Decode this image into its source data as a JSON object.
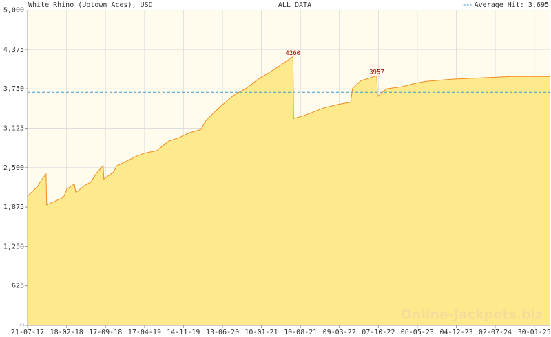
{
  "chart_data": {
    "type": "area",
    "title": "White Rhino (Uptown Aces), USD",
    "subtitle": "ALL DATA",
    "watermark": "Online-Jackpots.biz",
    "average": {
      "label": "Average Hit: 3,695",
      "value": 3695,
      "color": "#3a9ac8"
    },
    "series": [
      {
        "name": "White Rhino (Uptown Aces)",
        "color": "#f08a1e",
        "fill": "#fee98c",
        "x": [
          "21-07-17",
          "15-09-17",
          "03-10-17",
          "29-10-17",
          "02-11-17",
          "17-12-17",
          "01-02-18",
          "19-02-18",
          "01-04-18",
          "09-04-18",
          "03-06-18",
          "29-06-18",
          "29-07-18",
          "04-09-18",
          "08-09-18",
          "30-10-18",
          "18-11-18",
          "10-03-19",
          "17-04-19",
          "23-06-19",
          "25-08-19",
          "20-10-19",
          "14-12-19",
          "16-02-20",
          "16-03-20",
          "31-05-20",
          "13-08-20",
          "26-10-20",
          "22-12-20",
          "25-03-21",
          "30-06-21",
          "04-07-21",
          "09-09-21",
          "10-12-21",
          "24-02-22",
          "09-05-22",
          "20-05-22",
          "04-07-22",
          "28-09-22",
          "02-10-22",
          "20-11-22",
          "14-02-23",
          "29-04-23",
          "23-06-23",
          "20-11-23",
          "17-04-24",
          "02-10-24",
          "27-04-25"
        ],
        "values": [
          2050,
          2210,
          2300,
          2400,
          1910,
          1970,
          2030,
          2160,
          2240,
          2110,
          2230,
          2270,
          2410,
          2530,
          2320,
          2430,
          2530,
          2690,
          2730,
          2770,
          2920,
          2975,
          3050,
          3105,
          3250,
          3465,
          3650,
          3770,
          3900,
          4065,
          4260,
          3280,
          3335,
          3445,
          3500,
          3540,
          3760,
          3880,
          3957,
          3630,
          3750,
          3785,
          3840,
          3870,
          3905,
          3925,
          3945,
          3945
        ]
      }
    ],
    "annotations": [
      {
        "x": "30-06-21",
        "y": 4260
      },
      {
        "x": "28-09-22",
        "y": 3957
      }
    ],
    "xlim": [
      "21-07-17",
      "27-04-25"
    ],
    "xticks": [
      "21-07-17",
      "18-02-18",
      "17-09-18",
      "17-04-19",
      "14-11-19",
      "13-06-20",
      "10-01-21",
      "10-08-21",
      "09-03-22",
      "07-10-22",
      "06-05-23",
      "04-12-23",
      "02-07-24",
      "30-01-25"
    ],
    "ylim": [
      0,
      5000
    ],
    "yticks": [
      0,
      625,
      {
        "value": 1250,
        "label": "1,250"
      },
      {
        "value": 1875,
        "label": "1,875"
      },
      {
        "value": 2500,
        "label": "2,500"
      },
      {
        "value": 3125,
        "label": "3,125"
      },
      {
        "value": 3750,
        "label": "3,750"
      },
      {
        "value": 4375,
        "label": "4,375"
      },
      {
        "value": 5000,
        "label": "5,000"
      }
    ],
    "grid": true
  }
}
